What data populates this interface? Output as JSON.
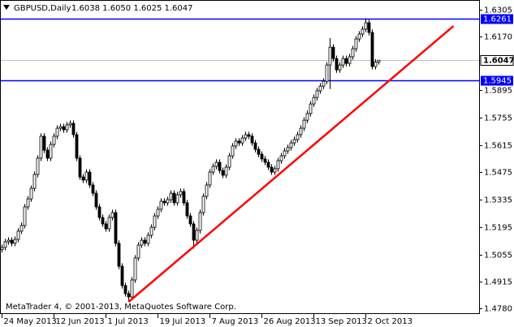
{
  "chart_data": {
    "type": "candlestick",
    "title": "GBPUSD,Daily",
    "quote": "1.6038 1.6050 1.6025 1.6047",
    "footer": "MetaTrader 4, © 2001-2013, MetaQuotes Software Corp.",
    "categories": [
      "24 May 2013",
      null,
      null,
      null,
      null,
      null,
      null,
      null,
      null,
      null,
      null,
      null,
      null,
      null,
      null,
      null,
      "12 Jun 2013",
      null,
      null,
      null,
      null,
      null,
      null,
      null,
      null,
      null,
      null,
      null,
      null,
      null,
      null,
      null,
      "1 Jul 2013",
      null,
      null,
      null,
      null,
      null,
      null,
      null,
      null,
      null,
      null,
      null,
      null,
      null,
      null,
      null,
      "19 Jul 2013",
      null,
      null,
      null,
      null,
      null,
      null,
      null,
      null,
      null,
      null,
      null,
      null,
      null,
      null,
      null,
      "7 Aug 2013",
      null,
      null,
      null,
      null,
      null,
      null,
      null,
      null,
      null,
      null,
      null,
      null,
      null,
      null,
      null,
      "26 Aug 2013",
      null,
      null,
      null,
      null,
      null,
      null,
      null,
      null,
      null,
      null,
      null,
      null,
      null,
      null,
      null,
      "13 Sep 2013",
      null,
      null,
      null,
      null,
      null,
      null,
      null,
      null,
      null,
      null,
      null,
      null,
      null,
      null,
      null,
      "2 Oct 2013",
      null,
      null,
      null,
      null
    ],
    "open": [
      1.508,
      1.5091,
      1.512,
      1.5128,
      1.5112,
      1.5132,
      1.5174,
      1.5203,
      1.5298,
      1.5339,
      1.5393,
      1.5464,
      1.5547,
      1.5659,
      1.5588,
      1.5547,
      1.5617,
      1.5659,
      1.57,
      1.5708,
      1.5692,
      1.5717,
      1.5725,
      1.5667,
      1.5547,
      1.5451,
      1.5435,
      1.5476,
      1.541,
      1.5368,
      1.5298,
      1.5244,
      1.5211,
      1.5186,
      1.5244,
      1.5269,
      1.5112,
      1.4995,
      1.4896,
      1.4855,
      1.4838,
      1.4925,
      1.5037,
      1.5103,
      1.5128,
      1.5112,
      1.5153,
      1.5194,
      1.5252,
      1.5286,
      1.5327,
      1.5319,
      1.5335,
      1.5368,
      1.5319,
      1.536,
      1.5377,
      1.5319,
      1.5252,
      1.5211,
      1.5128,
      1.5178,
      1.5269,
      1.5352,
      1.541,
      1.5476,
      1.5505,
      1.5526,
      1.5484,
      1.546,
      1.5501,
      1.5559,
      1.5609,
      1.5634,
      1.5625,
      1.565,
      1.5667,
      1.5659,
      1.5625,
      1.5592,
      1.5567,
      1.5543,
      1.5526,
      1.5501,
      1.5476,
      1.5493,
      1.5534,
      1.5559,
      1.5584,
      1.5601,
      1.5625,
      1.5642,
      1.5667,
      1.57,
      1.5741,
      1.5775,
      1.5824,
      1.5857,
      1.5891,
      1.5915,
      1.594,
      1.6023,
      1.6114,
      1.6056,
      1.5998,
      1.6023,
      1.6056,
      1.6031,
      1.6065,
      1.6106,
      1.6156,
      1.6181,
      1.6206,
      1.6239,
      1.6189,
      1.6015,
      1.6038
    ],
    "high": [
      1.5106,
      1.5135,
      1.5143,
      1.5143,
      1.5147,
      1.5189,
      1.5218,
      1.5313,
      1.5354,
      1.5408,
      1.5479,
      1.5562,
      1.5674,
      1.5674,
      1.5603,
      1.5632,
      1.5674,
      1.5715,
      1.5723,
      1.5723,
      1.5732,
      1.574,
      1.574,
      1.5682,
      1.5562,
      1.5466,
      1.5491,
      1.5491,
      1.5425,
      1.5383,
      1.5313,
      1.5259,
      1.5226,
      1.5259,
      1.5284,
      1.5284,
      1.5127,
      1.501,
      1.4911,
      1.487,
      1.494,
      1.5052,
      1.5118,
      1.5143,
      1.5143,
      1.5168,
      1.5209,
      1.5267,
      1.5301,
      1.5342,
      1.5342,
      1.535,
      1.5383,
      1.5383,
      1.5375,
      1.5392,
      1.5392,
      1.5334,
      1.5267,
      1.5226,
      1.5193,
      1.5284,
      1.5367,
      1.5425,
      1.5491,
      1.552,
      1.5541,
      1.5541,
      1.5499,
      1.5516,
      1.5574,
      1.5624,
      1.5649,
      1.5649,
      1.5665,
      1.5682,
      1.5682,
      1.5674,
      1.564,
      1.5607,
      1.5582,
      1.5558,
      1.5541,
      1.5516,
      1.5508,
      1.5549,
      1.5574,
      1.5599,
      1.5616,
      1.564,
      1.5657,
      1.5682,
      1.5715,
      1.5756,
      1.579,
      1.5839,
      1.5872,
      1.5906,
      1.593,
      1.5955,
      1.6038,
      1.616,
      1.6129,
      1.6071,
      1.6038,
      1.6071,
      1.6071,
      1.608,
      1.6121,
      1.6171,
      1.6196,
      1.6221,
      1.6261,
      1.6254,
      1.6204,
      1.6053,
      1.605
    ],
    "low": [
      1.5065,
      1.5076,
      1.5105,
      1.5097,
      1.5097,
      1.5117,
      1.5159,
      1.5188,
      1.5283,
      1.5324,
      1.5378,
      1.5449,
      1.5532,
      1.5573,
      1.5532,
      1.5532,
      1.5602,
      1.5644,
      1.5685,
      1.5677,
      1.5677,
      1.5702,
      1.5652,
      1.5532,
      1.5436,
      1.542,
      1.542,
      1.5395,
      1.5353,
      1.5283,
      1.5229,
      1.5196,
      1.5171,
      1.5171,
      1.5229,
      1.5097,
      1.498,
      1.4881,
      1.484,
      1.4813,
      1.4823,
      1.491,
      1.5022,
      1.5088,
      1.5097,
      1.5097,
      1.5138,
      1.5179,
      1.5237,
      1.5271,
      1.5304,
      1.5304,
      1.532,
      1.5304,
      1.5304,
      1.5345,
      1.5304,
      1.5237,
      1.5196,
      1.5085,
      1.5113,
      1.5163,
      1.5254,
      1.5337,
      1.5395,
      1.5461,
      1.549,
      1.5469,
      1.5445,
      1.5445,
      1.5486,
      1.5544,
      1.5594,
      1.561,
      1.561,
      1.5635,
      1.5644,
      1.561,
      1.5577,
      1.5552,
      1.5528,
      1.5511,
      1.5486,
      1.5461,
      1.5461,
      1.5478,
      1.5519,
      1.5544,
      1.5569,
      1.5586,
      1.561,
      1.5627,
      1.5652,
      1.5685,
      1.5726,
      1.576,
      1.5809,
      1.5842,
      1.5876,
      1.59,
      1.5925,
      1.59,
      1.6041,
      1.5983,
      1.5983,
      1.6008,
      1.6016,
      1.6016,
      1.605,
      1.6091,
      1.6141,
      1.6166,
      1.6191,
      1.6174,
      1.6,
      1.6,
      1.6025
    ],
    "close": [
      1.5091,
      1.512,
      1.5128,
      1.5112,
      1.5132,
      1.5174,
      1.5203,
      1.5298,
      1.5339,
      1.5393,
      1.5464,
      1.5547,
      1.5659,
      1.5588,
      1.5547,
      1.5617,
      1.5659,
      1.57,
      1.5708,
      1.5692,
      1.5717,
      1.5725,
      1.5667,
      1.5547,
      1.5451,
      1.5435,
      1.5476,
      1.541,
      1.5368,
      1.5298,
      1.5244,
      1.5211,
      1.5186,
      1.5244,
      1.5269,
      1.5112,
      1.4995,
      1.4896,
      1.4855,
      1.4838,
      1.4925,
      1.5037,
      1.5103,
      1.5128,
      1.5112,
      1.5153,
      1.5194,
      1.5252,
      1.5286,
      1.5327,
      1.5319,
      1.5335,
      1.5368,
      1.5319,
      1.536,
      1.5377,
      1.5319,
      1.5252,
      1.5211,
      1.5128,
      1.5178,
      1.5269,
      1.5352,
      1.541,
      1.5476,
      1.5505,
      1.5526,
      1.5484,
      1.546,
      1.5501,
      1.5559,
      1.5609,
      1.5634,
      1.5625,
      1.565,
      1.5667,
      1.5659,
      1.5625,
      1.5592,
      1.5567,
      1.5543,
      1.5526,
      1.5501,
      1.5476,
      1.5493,
      1.5534,
      1.5559,
      1.5584,
      1.5601,
      1.5625,
      1.5642,
      1.5667,
      1.57,
      1.5741,
      1.5775,
      1.5824,
      1.5857,
      1.5891,
      1.5915,
      1.594,
      1.6023,
      1.6114,
      1.6056,
      1.5998,
      1.6023,
      1.6056,
      1.6031,
      1.6065,
      1.6106,
      1.6156,
      1.6181,
      1.6206,
      1.6239,
      1.6189,
      1.6015,
      1.6038,
      1.6047
    ],
    "up_color": "#ffffff",
    "down_color": "#000000",
    "line_color": "#000000",
    "ylim": [
      1.4726,
      1.6355
    ],
    "yticks": [
      1.6305,
      {
        "value": 1.617,
        "label": "1.6170"
      },
      1.5895,
      1.5755,
      1.5615,
      1.5475,
      1.5335,
      1.5195,
      1.5055,
      1.4915,
      {
        "value": 1.478,
        "label": "1.4780"
      }
    ],
    "levels": [
      {
        "value": 1.6261,
        "color": "#0000ff"
      },
      {
        "value": 1.5945,
        "color": "#0000ff"
      }
    ],
    "bid": {
      "value": 1.6047,
      "color": "#c0c0c0"
    },
    "trendline": {
      "color": "#ff0000",
      "x": [
        39,
        139
      ],
      "y": [
        1.4813,
        1.6222
      ]
    }
  }
}
